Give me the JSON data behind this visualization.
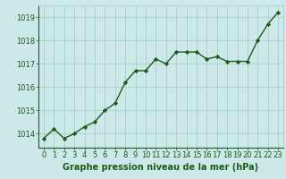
{
  "x": [
    0,
    1,
    2,
    3,
    4,
    5,
    6,
    7,
    8,
    9,
    10,
    11,
    12,
    13,
    14,
    15,
    16,
    17,
    18,
    19,
    20,
    21,
    22,
    23
  ],
  "y": [
    1013.8,
    1014.2,
    1013.8,
    1014.0,
    1014.3,
    1014.5,
    1015.0,
    1015.3,
    1016.2,
    1016.7,
    1016.7,
    1017.2,
    1017.0,
    1017.5,
    1017.5,
    1017.5,
    1017.2,
    1017.3,
    1017.1,
    1017.1,
    1017.1,
    1018.0,
    1018.7,
    1019.2
  ],
  "line_color": "#1a5c1a",
  "marker": "D",
  "marker_size": 2.2,
  "bg_color": "#cce8e8",
  "grid_color": "#aacece",
  "ylabel_ticks": [
    1014,
    1015,
    1016,
    1017,
    1018,
    1019
  ],
  "xlabel": "Graphe pression niveau de la mer (hPa)",
  "ylim": [
    1013.4,
    1019.5
  ],
  "xlim": [
    -0.5,
    23.5
  ],
  "xlabel_fontsize": 7.0,
  "tick_fontsize": 6.0,
  "tick_color": "#1a5c1a",
  "label_color": "#1a5c1a",
  "linewidth": 1.0
}
